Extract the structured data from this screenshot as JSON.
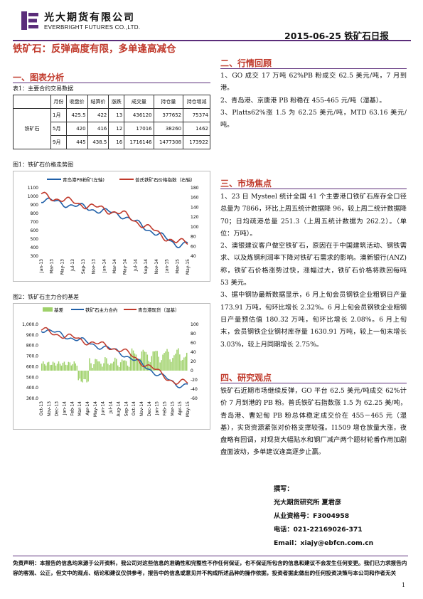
{
  "header": {
    "company_cn": "光大期货有限公司",
    "company_en": "EVERBRIGHT FUTURES CO.,LTD.",
    "date_title": "2015-06-25  铁矿石日报",
    "brand_color": "#5b2d7a"
  },
  "title": "铁矿石：反弹高度有限，多单逢高减仓",
  "sections": {
    "charts": "一、图表分析",
    "review": "二、行情回顾",
    "focus": "三、市场焦点",
    "view": "四、研究观点"
  },
  "table": {
    "caption": "表1：主要合约交易数据",
    "headers": [
      "月份",
      "收盘价",
      "结算价",
      "涨跌",
      "成交量",
      "持仓量",
      "持仓增减"
    ],
    "product": "铁矿石",
    "rows": [
      [
        "1月",
        "425.5",
        "422",
        "13",
        "436120",
        "377652",
        "75374"
      ],
      [
        "5月",
        "420",
        "416",
        "12",
        "17016",
        "38260",
        "1462"
      ],
      [
        "9月",
        "445",
        "438.5",
        "16",
        "1716146",
        "1477308",
        "173922"
      ]
    ]
  },
  "chart1": {
    "caption": "图1：铁矿石价格走势图",
    "legend1": "青岛港PB粉矿(左轴)",
    "legend2": "普氏铁矿石价格指数（右轴）",
    "left_ticks": [
      "1100",
      "1000",
      "900",
      "800",
      "700",
      "600",
      "500",
      "400",
      "300"
    ],
    "right_ticks": [
      "180",
      "160",
      "140",
      "120",
      "100",
      "80",
      "60",
      "40"
    ],
    "x_ticks": [
      "Jan-13",
      "Mar-13",
      "May-13",
      "Jul-13",
      "Sep-13",
      "Nov-13",
      "Jan-14",
      "Mar-14",
      "May-14",
      "Jul-14",
      "Sep-14",
      "Nov-14",
      "Jan-15",
      "Mar-15",
      "May-15"
    ]
  },
  "chart2": {
    "caption": "图2：铁矿石主力合约基差",
    "legend1": "基差",
    "legend2": "铁矿石主力合约",
    "legend3": "青岛港现货（湿基）",
    "left_ticks": [
      "1,000.0",
      "900.0",
      "800.0",
      "700.0",
      "600.0",
      "500.0",
      "400.0",
      "300.0"
    ],
    "right_ticks": [
      "100",
      "80",
      "60",
      "40",
      "20",
      "0",
      "-20",
      "-40",
      "-60"
    ],
    "x_ticks": [
      "Oct-13",
      "Nov-13",
      "Dec-13",
      "Jan-14",
      "Feb-14",
      "Mar-14",
      "Apr-14",
      "May-14",
      "Jun-14",
      "Jul-14",
      "Aug-14",
      "Sep-14",
      "Oct-14",
      "Nov-14",
      "Dec-14",
      "Jan-15",
      "Feb-15",
      "Mar-15",
      "Apr-15",
      "May-15"
    ]
  },
  "review": [
    "1、GO 成交 17 万吨 62%PB 粉成交 62.5 美元/吨，7 月到港。",
    "2、青岛港、京唐港 PB 粉稳在 455-465 元/吨（湿基）。",
    "3、Platts62%涨 1.5 为 62.25 美元/吨，MTD 63.16 美元/吨。"
  ],
  "focus": [
    "1、23 日 Mysteel 统计全国 41 个主要港口铁矿石库存全口径总量为 7866，环比上周五统计数据降 96，较上周二统计数据降 70；日均疏港总量 251.3（上周五统计数据为 262.2）。（单位：万吨）。",
    "2、澳银建议客户做空铁矿石，原因在于中国建筑活动、钢铁需求、以及炼钢利润率下降对铁矿石需求的影响。澳新银行(ANZ)称，铁矿石价格涨势过快，涨幅过大，铁矿石价格将跌回每吨 53 美元。",
    "3、据中钢协最新数据显示，6 月上旬会员钢铁企业粗钢日产量 173.91 万吨，旬环比增长 2.32%。6 月上旬会员钢铁企业粗钢日产量预估值 180.32 万吨，旬环比增长 2.08%。6 月上旬末，会员钢铁企业钢材库存量 1630.91 万吨，较上一旬末增长 3.03%，较上月同期增长 2.75%。"
  ],
  "view": "铁矿石近期市场继续反弹，GO 平台 62.5 美元/吨成交 62%计价 7 月到港的 PB 粉。普氏铁矿石指数涨 1.5 为 62.25 美/吨，青岛港、曹妃甸 PB 粉总体稳定成交价在 455－465 元（湿基），实货资源紧张对价格支撑较强。I1509 增仓放量大涨，夜盘略有回调，对现货大幅贴水和钢厂减产两个题材轮番作用加剧盘面波动，多单建议逢高逐步止赢。",
  "signature": {
    "label": "撰写：",
    "org": "光大期货研究所  夏君彦",
    "license": "从业资格号：F3004958",
    "phone": "电话：021-22169026-371",
    "email": "Email：xiajy@ebfcn.com.cn"
  },
  "disclaimer": "免责声明：本报告的信息均来源于公开资料，我公司对这些信息的准确性和完整性不作任何保证，也不保证所包含的信息和建议不会发生任何变更。我们已力求报告内容的客观、公正，但文中的观点、结论和建议仅供参考，报告中的信息或意见并不构成所述品种的操作依据，投资者据此做出的任何投资决策与本公司和作者无关",
  "page_number": "1",
  "colors": {
    "accent": "#c0392b",
    "series_blue": "#1f5fa8",
    "series_red": "#c0392b",
    "basis_green": "#9fd16a"
  }
}
